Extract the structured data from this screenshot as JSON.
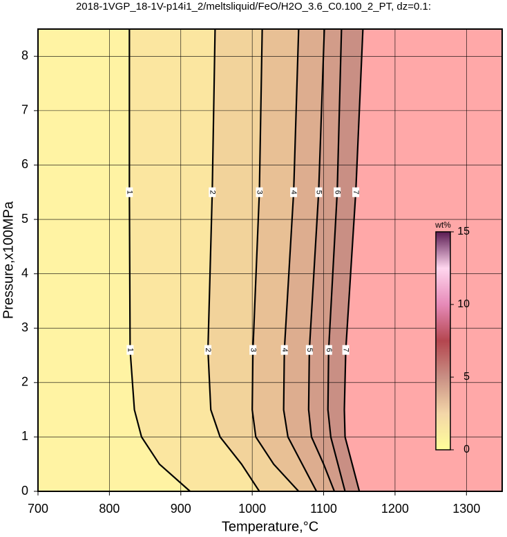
{
  "chart_data": {
    "type": "contour",
    "title": "2018-1VGP_18-1V-p14i1_2/meltsliquid/FeO/H2O_3.6_C0.100_2_PT, dz=0.1:",
    "x_label": "Temperature,°C",
    "y_label": "Pressure,x100MPa",
    "xlim": [
      700,
      1350
    ],
    "ylim": [
      0,
      8.5
    ],
    "xticks": [
      700,
      800,
      900,
      1000,
      1100,
      1200,
      1300
    ],
    "yticks": [
      0,
      1,
      2,
      3,
      4,
      5,
      6,
      7,
      8
    ],
    "grid": true,
    "contours": [
      {
        "level": 1,
        "T": [
          828,
          828,
          829,
          835,
          845,
          870,
          913
        ],
        "P": [
          8.5,
          5.5,
          2.6,
          1.5,
          1,
          0.5,
          0
        ]
      },
      {
        "level": 2,
        "T": [
          948,
          944,
          938,
          942,
          955,
          985,
          1010
        ],
        "P": [
          8.5,
          5.5,
          2.6,
          1.5,
          1,
          0.5,
          0
        ]
      },
      {
        "level": 3,
        "T": [
          1014,
          1010,
          1001,
          1000,
          1005,
          1030,
          1065
        ],
        "P": [
          8.5,
          5.5,
          2.6,
          1.5,
          1,
          0.5,
          0
        ]
      },
      {
        "level": 4,
        "T": [
          1065,
          1058,
          1045,
          1044,
          1050,
          1070,
          1090
        ],
        "P": [
          8.5,
          5.5,
          2.6,
          1.5,
          1,
          0.5,
          0
        ]
      },
      {
        "level": 5,
        "T": [
          1101,
          1093,
          1080,
          1079,
          1083,
          1100,
          1115
        ],
        "P": [
          8.5,
          5.5,
          2.6,
          1.5,
          1,
          0.5,
          0
        ]
      },
      {
        "level": 6,
        "T": [
          1125,
          1119,
          1107,
          1106,
          1110,
          1120,
          1130
        ],
        "P": [
          8.5,
          5.5,
          2.6,
          1.5,
          1,
          0.5,
          0
        ]
      },
      {
        "level": 7,
        "T": [
          1155,
          1145,
          1131,
          1129,
          1130,
          1140,
          1150
        ],
        "P": [
          8.5,
          5.5,
          2.6,
          1.5,
          1,
          0.5,
          0
        ]
      }
    ],
    "band_colors": [
      "#fff3a3",
      "#fbe6a0",
      "#f2d39b",
      "#e8c095",
      "#ddad8f",
      "#d29c89",
      "#c98f84"
    ],
    "saturated_color": "#ffa8a8",
    "colorbar": {
      "label": "wt%",
      "lim": [
        0,
        15
      ],
      "ticks": [
        0,
        5,
        10,
        15
      ],
      "colors": [
        "#ffff99",
        "#f3d6a8",
        "#c98f84",
        "#b4464f",
        "#e68ab8",
        "#ffd6ee",
        "#5a1a52"
      ]
    }
  }
}
